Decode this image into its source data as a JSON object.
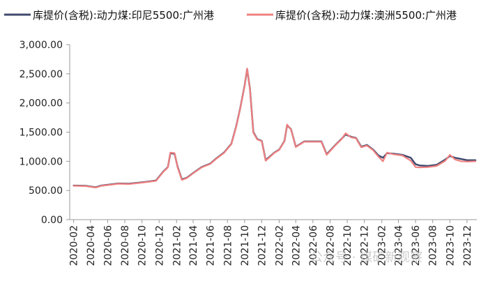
{
  "chart_data": {
    "type": "line",
    "title": "",
    "xlabel": "",
    "ylabel": "",
    "ylim": [
      0,
      3000
    ],
    "yticks": [
      0,
      500,
      1000,
      1500,
      2000,
      2500,
      3000
    ],
    "ytick_labels": [
      "0.00",
      "500.00",
      "1,000.00",
      "1,500.00",
      "2,000.00",
      "2,500.00",
      "3,000.00"
    ],
    "xticks": [
      "2020-02",
      "2020-04",
      "2020-06",
      "2020-08",
      "2020-10",
      "2020-12",
      "2021-02",
      "2021-04",
      "2021-06",
      "2021-08",
      "2021-10",
      "2021-12",
      "2022-02",
      "2022-04",
      "2022-06",
      "2022-08",
      "2022-10",
      "2022-12",
      "2023-02",
      "2023-04",
      "2023-06",
      "2023-08",
      "2023-10",
      "2023-12"
    ],
    "grid": false,
    "legend_position": "top",
    "series": [
      {
        "name": "库提价(含税):动力煤:印尼5500:广州港",
        "color": "#404a6e",
        "points": [
          [
            "2020-02-01",
            585
          ],
          [
            "2020-03-15",
            580
          ],
          [
            "2020-04-20",
            555
          ],
          [
            "2020-05-10",
            585
          ],
          [
            "2020-06-15",
            605
          ],
          [
            "2020-07-10",
            620
          ],
          [
            "2020-08-15",
            615
          ],
          [
            "2020-09-15",
            630
          ],
          [
            "2020-10-20",
            650
          ],
          [
            "2020-11-20",
            670
          ],
          [
            "2020-12-15",
            820
          ],
          [
            "2021-01-01",
            900
          ],
          [
            "2021-01-10",
            1140
          ],
          [
            "2021-01-25",
            1130
          ],
          [
            "2021-02-05",
            900
          ],
          [
            "2021-02-20",
            690
          ],
          [
            "2021-03-10",
            720
          ],
          [
            "2021-04-01",
            800
          ],
          [
            "2021-05-01",
            900
          ],
          [
            "2021-06-01",
            960
          ],
          [
            "2021-06-20",
            1040
          ],
          [
            "2021-07-20",
            1150
          ],
          [
            "2021-08-15",
            1300
          ],
          [
            "2021-09-01",
            1600
          ],
          [
            "2021-09-15",
            1900
          ],
          [
            "2021-10-01",
            2300
          ],
          [
            "2021-10-10",
            2580
          ],
          [
            "2021-10-20",
            2250
          ],
          [
            "2021-11-01",
            1500
          ],
          [
            "2021-11-15",
            1380
          ],
          [
            "2021-12-01",
            1350
          ],
          [
            "2021-12-15",
            1020
          ],
          [
            "2022-01-15",
            1150
          ],
          [
            "2022-02-01",
            1200
          ],
          [
            "2022-02-20",
            1350
          ],
          [
            "2022-03-01",
            1620
          ],
          [
            "2022-03-15",
            1550
          ],
          [
            "2022-04-01",
            1250
          ],
          [
            "2022-05-01",
            1340
          ],
          [
            "2022-06-01",
            1340
          ],
          [
            "2022-07-01",
            1340
          ],
          [
            "2022-07-20",
            1120
          ],
          [
            "2022-08-20",
            1280
          ],
          [
            "2022-09-10",
            1380
          ],
          [
            "2022-09-25",
            1460
          ],
          [
            "2022-10-15",
            1420
          ],
          [
            "2022-11-01",
            1400
          ],
          [
            "2022-11-20",
            1250
          ],
          [
            "2022-12-10",
            1280
          ],
          [
            "2023-01-01",
            1200
          ],
          [
            "2023-01-20",
            1100
          ],
          [
            "2023-02-05",
            1060
          ],
          [
            "2023-02-20",
            1140
          ],
          [
            "2023-03-15",
            1130
          ],
          [
            "2023-04-15",
            1110
          ],
          [
            "2023-05-15",
            1060
          ],
          [
            "2023-06-01",
            950
          ],
          [
            "2023-06-15",
            930
          ],
          [
            "2023-07-15",
            920
          ],
          [
            "2023-08-15",
            940
          ],
          [
            "2023-09-15",
            1030
          ],
          [
            "2023-10-01",
            1090
          ],
          [
            "2023-10-20",
            1060
          ],
          [
            "2023-11-10",
            1040
          ],
          [
            "2023-12-01",
            1020
          ],
          [
            "2023-12-31",
            1020
          ]
        ]
      },
      {
        "name": "库提价(含税):动力煤:澳洲5500:广州港",
        "color": "#f08080",
        "points": [
          [
            "2020-02-01",
            580
          ],
          [
            "2020-03-15",
            575
          ],
          [
            "2020-04-20",
            550
          ],
          [
            "2020-05-10",
            580
          ],
          [
            "2020-06-15",
            600
          ],
          [
            "2020-07-10",
            615
          ],
          [
            "2020-08-15",
            610
          ],
          [
            "2020-09-15",
            625
          ],
          [
            "2020-10-20",
            645
          ],
          [
            "2020-11-20",
            665
          ],
          [
            "2020-12-15",
            815
          ],
          [
            "2021-01-01",
            895
          ],
          [
            "2021-01-10",
            1150
          ],
          [
            "2021-01-25",
            1140
          ],
          [
            "2021-02-05",
            890
          ],
          [
            "2021-02-20",
            680
          ],
          [
            "2021-03-10",
            715
          ],
          [
            "2021-04-01",
            795
          ],
          [
            "2021-05-01",
            895
          ],
          [
            "2021-06-01",
            955
          ],
          [
            "2021-06-20",
            1035
          ],
          [
            "2021-07-20",
            1145
          ],
          [
            "2021-08-15",
            1295
          ],
          [
            "2021-09-01",
            1595
          ],
          [
            "2021-09-15",
            1895
          ],
          [
            "2021-10-01",
            2295
          ],
          [
            "2021-10-10",
            2590
          ],
          [
            "2021-10-20",
            2240
          ],
          [
            "2021-11-01",
            1490
          ],
          [
            "2021-11-15",
            1375
          ],
          [
            "2021-12-01",
            1345
          ],
          [
            "2021-12-15",
            1010
          ],
          [
            "2022-01-15",
            1145
          ],
          [
            "2022-02-01",
            1195
          ],
          [
            "2022-02-20",
            1345
          ],
          [
            "2022-03-01",
            1630
          ],
          [
            "2022-03-15",
            1545
          ],
          [
            "2022-04-01",
            1245
          ],
          [
            "2022-05-01",
            1335
          ],
          [
            "2022-06-01",
            1335
          ],
          [
            "2022-07-01",
            1335
          ],
          [
            "2022-07-20",
            1110
          ],
          [
            "2022-08-20",
            1275
          ],
          [
            "2022-09-10",
            1375
          ],
          [
            "2022-09-25",
            1480
          ],
          [
            "2022-10-15",
            1410
          ],
          [
            "2022-11-01",
            1395
          ],
          [
            "2022-11-20",
            1240
          ],
          [
            "2022-12-10",
            1270
          ],
          [
            "2023-01-01",
            1190
          ],
          [
            "2023-01-20",
            1080
          ],
          [
            "2023-02-05",
            1000
          ],
          [
            "2023-02-20",
            1150
          ],
          [
            "2023-03-15",
            1120
          ],
          [
            "2023-04-15",
            1100
          ],
          [
            "2023-05-15",
            1010
          ],
          [
            "2023-06-01",
            900
          ],
          [
            "2023-06-15",
            895
          ],
          [
            "2023-07-15",
            900
          ],
          [
            "2023-08-15",
            920
          ],
          [
            "2023-09-15",
            1010
          ],
          [
            "2023-10-01",
            1110
          ],
          [
            "2023-10-20",
            1030
          ],
          [
            "2023-11-10",
            1000
          ],
          [
            "2023-12-01",
            995
          ],
          [
            "2023-12-31",
            1000
          ]
        ]
      }
    ]
  },
  "watermark": "公众号 · 煤矿新观察"
}
